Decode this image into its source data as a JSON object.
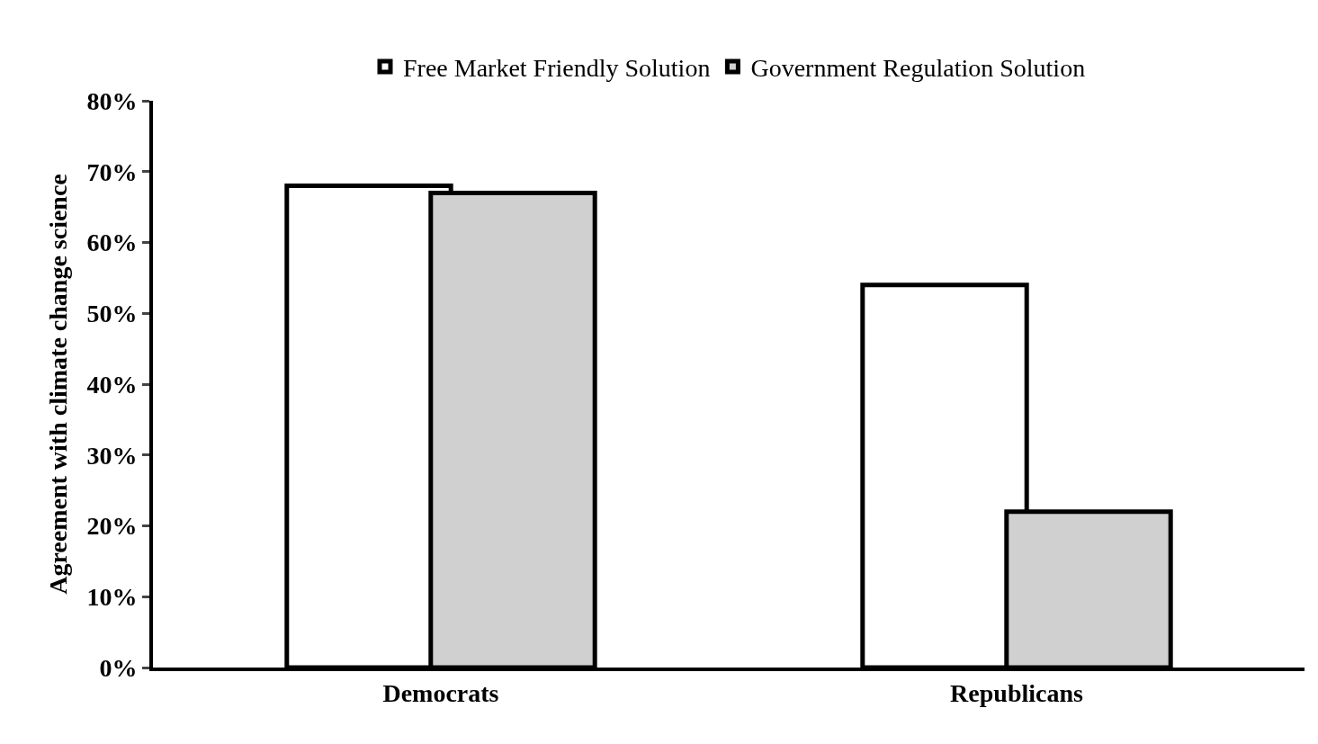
{
  "chart_data": {
    "type": "bar",
    "ylabel": "Agreement with climate change science",
    "categories": [
      "Democrats",
      "Republicans"
    ],
    "series": [
      {
        "name": "Free Market Friendly Solution",
        "color": "#ffffff",
        "values": [
          68,
          54
        ]
      },
      {
        "name": "Government Regulation Solution",
        "color": "#d0d0d0",
        "values": [
          67,
          22
        ]
      }
    ],
    "ylim": [
      0,
      80
    ],
    "yticks": [
      {
        "value": 0,
        "label": "0%"
      },
      {
        "value": 10,
        "label": "10%"
      },
      {
        "value": 20,
        "label": "20%"
      },
      {
        "value": 30,
        "label": "30%"
      },
      {
        "value": 40,
        "label": "40%"
      },
      {
        "value": 50,
        "label": "50%"
      },
      {
        "value": 60,
        "label": "60%"
      },
      {
        "value": 70,
        "label": "70%"
      },
      {
        "value": 80,
        "label": "80%"
      }
    ],
    "legend": "top"
  }
}
